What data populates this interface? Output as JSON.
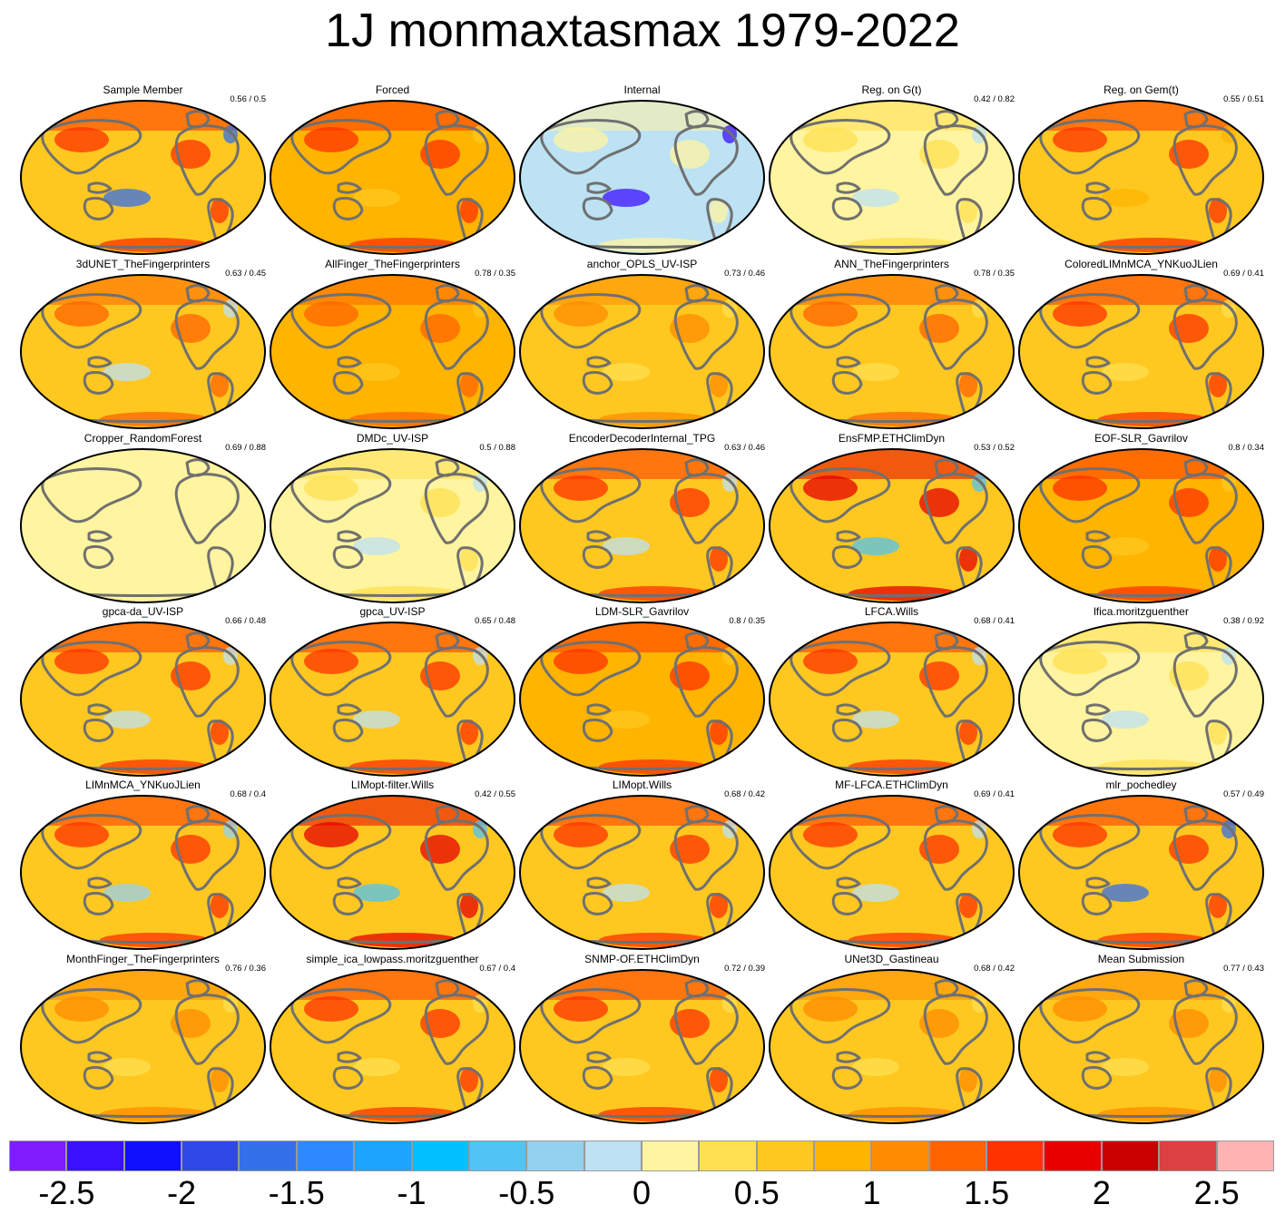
{
  "title": "1J monmaxtasmax 1979-2022",
  "colors": {
    "deep_purple": "#7f1dff",
    "blue1": "#3a10ff",
    "blue2": "#1010ff",
    "blue3": "#3048e8",
    "blue4": "#3470ea",
    "blue5": "#2e88ff",
    "blue6": "#1ca4ff",
    "cyan": "#00c0ff",
    "light_cyan": "#50c4f2",
    "pale_blue": "#94d0ef",
    "paler_blue": "#bce2f4",
    "pale_yellow": "#fff4a0",
    "yellow": "#ffe050",
    "gold": "#ffc820",
    "orange_light": "#ffb400",
    "orange": "#ff8c00",
    "orange_dark": "#ff6400",
    "red": "#ff3200",
    "red2": "#e60000",
    "dark_red": "#c80000",
    "crimson": "#dc4040",
    "pink": "#ffb4b4",
    "land_outline": "#707070"
  },
  "colorbar": {
    "colors": [
      "#7f1dff",
      "#3a10ff",
      "#1010ff",
      "#3048e8",
      "#3470ea",
      "#2e88ff",
      "#1ca4ff",
      "#00c0ff",
      "#50c4f2",
      "#94d0ef",
      "#bce2f4",
      "#fff4a0",
      "#ffe050",
      "#ffc820",
      "#ffb400",
      "#ff8c00",
      "#ff6400",
      "#ff3200",
      "#e60000",
      "#c80000",
      "#dc4040",
      "#ffb4b4"
    ],
    "labels": [
      "-2.5",
      "-2",
      "-1.5",
      "-1",
      "-0.5",
      "0",
      "0.5",
      "1",
      "1.5",
      "2",
      "2.5"
    ]
  },
  "panels": [
    {
      "title": "Sample Member",
      "score": "0.56 / 0.5",
      "base": "#ffc820",
      "hot": "#ff3200",
      "cool": "#3470ea"
    },
    {
      "title": "Forced",
      "score": "",
      "base": "#ffb400",
      "hot": "#ff3200",
      "cool": "#ffc820"
    },
    {
      "title": "Internal",
      "score": "",
      "base": "#bce2f4",
      "hot": "#fff4a0",
      "cool": "#3a10ff"
    },
    {
      "title": "Reg. on G(t)",
      "score": "0.42 / 0.82",
      "base": "#fff4a0",
      "hot": "#ffe050",
      "cool": "#bce2f4"
    },
    {
      "title": "Reg. on Gem(t)",
      "score": "0.55 / 0.51",
      "base": "#ffc820",
      "hot": "#ff3200",
      "cool": "#ffb400"
    },
    {
      "title": "3dUNET_TheFingerprinters",
      "score": "0.63 / 0.45",
      "base": "#ffc820",
      "hot": "#ff6400",
      "cool": "#bce2f4"
    },
    {
      "title": "AllFinger_TheFingerprinters",
      "score": "0.78 / 0.35",
      "base": "#ffb400",
      "hot": "#ff6400",
      "cool": "#ffc820"
    },
    {
      "title": "anchor_OPLS_UV-ISP",
      "score": "0.73 / 0.46",
      "base": "#ffc820",
      "hot": "#ff8c00",
      "cool": "#ffe050"
    },
    {
      "title": "ANN_TheFingerprinters",
      "score": "0.78 / 0.35",
      "base": "#ffc820",
      "hot": "#ff6400",
      "cool": "#ffe050"
    },
    {
      "title": "ColoredLIMnMCA_YNKuoJLien",
      "score": "0.69 / 0.41",
      "base": "#ffc820",
      "hot": "#ff3200",
      "cool": "#ffe050"
    },
    {
      "title": "Cropper_RandomForest",
      "score": "0.69 / 0.88",
      "base": "#fff4a0",
      "hot": "#fff4a0",
      "cool": "#fff4a0"
    },
    {
      "title": "DMDc_UV-ISP",
      "score": "0.5 / 0.88",
      "base": "#fff4a0",
      "hot": "#ffe050",
      "cool": "#bce2f4"
    },
    {
      "title": "EncoderDecoderInternal_TPG",
      "score": "0.63 / 0.46",
      "base": "#ffc820",
      "hot": "#ff3200",
      "cool": "#bce2f4"
    },
    {
      "title": "EnsFMP.ETHClimDyn",
      "score": "0.53 / 0.52",
      "base": "#ffc820",
      "hot": "#e60000",
      "cool": "#50c4f2"
    },
    {
      "title": "EOF-SLR_Gavrilov",
      "score": "0.8 / 0.34",
      "base": "#ffb400",
      "hot": "#ff3200",
      "cool": "#ffc820"
    },
    {
      "title": "gpca-da_UV-ISP",
      "score": "0.66 / 0.48",
      "base": "#ffc820",
      "hot": "#ff3200",
      "cool": "#bce2f4"
    },
    {
      "title": "gpca_UV-ISP",
      "score": "0.65 / 0.48",
      "base": "#ffc820",
      "hot": "#ff3200",
      "cool": "#bce2f4"
    },
    {
      "title": "LDM-SLR_Gavrilov",
      "score": "0.8 / 0.35",
      "base": "#ffb400",
      "hot": "#ff3200",
      "cool": "#ffc820"
    },
    {
      "title": "LFCA.Wills",
      "score": "0.68 / 0.41",
      "base": "#ffc820",
      "hot": "#ff3200",
      "cool": "#bce2f4"
    },
    {
      "title": "lfica.moritzguenther",
      "score": "0.38 / 0.92",
      "base": "#fff4a0",
      "hot": "#ffe050",
      "cool": "#bce2f4"
    },
    {
      "title": "LIMnMCA_YNKuoJLien",
      "score": "0.68 / 0.4",
      "base": "#ffc820",
      "hot": "#ff3200",
      "cool": "#94d0ef"
    },
    {
      "title": "LIMopt-filter.Wills",
      "score": "0.42 / 0.55",
      "base": "#ffc820",
      "hot": "#e60000",
      "cool": "#50c4f2"
    },
    {
      "title": "LIMopt.Wills",
      "score": "0.68 / 0.42",
      "base": "#ffc820",
      "hot": "#ff3200",
      "cool": "#bce2f4"
    },
    {
      "title": "MF-LFCA.ETHClimDyn",
      "score": "0.69 / 0.41",
      "base": "#ffc820",
      "hot": "#ff3200",
      "cool": "#bce2f4"
    },
    {
      "title": "mlr_pochedley",
      "score": "0.57 / 0.49",
      "base": "#ffc820",
      "hot": "#ff3200",
      "cool": "#3470ea"
    },
    {
      "title": "MonthFinger_TheFingerprinters",
      "score": "0.76 / 0.36",
      "base": "#ffc820",
      "hot": "#ff8c00",
      "cool": "#ffe050"
    },
    {
      "title": "simple_ica_lowpass.moritzguenther",
      "score": "0.67 / 0.4",
      "base": "#ffc820",
      "hot": "#ff3200",
      "cool": "#ffe050"
    },
    {
      "title": "SNMP-OF.ETHClimDyn",
      "score": "0.72 / 0.39",
      "base": "#ffc820",
      "hot": "#ff3200",
      "cool": "#ffe050"
    },
    {
      "title": "UNet3D_Gastineau",
      "score": "0.68 / 0.42",
      "base": "#ffc820",
      "hot": "#ff8c00",
      "cool": "#ffe050"
    },
    {
      "title": "Mean Submission",
      "score": "0.77 / 0.43",
      "base": "#ffc820",
      "hot": "#ff8c00",
      "cool": "#ffe050"
    }
  ]
}
